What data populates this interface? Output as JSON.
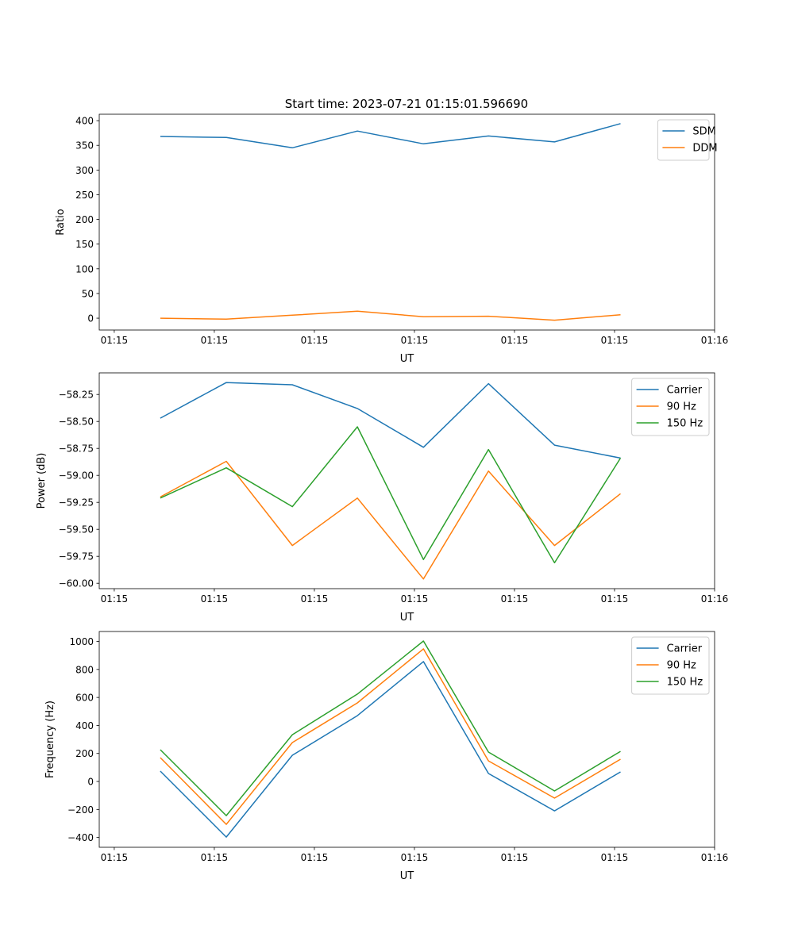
{
  "title": "Start time: 2023-07-21 01:15:01.596690",
  "colors": {
    "c0": "#1f77b4",
    "c1": "#ff7f0e",
    "c2": "#2ca02c"
  },
  "chart_data": [
    {
      "type": "line",
      "xlabel": "UT",
      "ylabel": "Ratio",
      "x": [
        0.46,
        1.12,
        1.78,
        2.43,
        3.09,
        3.74,
        4.4,
        5.06
      ],
      "xlim": [
        -0.15,
        6.0
      ],
      "xticks": [
        0,
        1,
        2,
        3,
        4,
        5,
        6
      ],
      "xticklabels": [
        "01:15",
        "01:15",
        "01:15",
        "01:15",
        "01:15",
        "01:15",
        "01:16"
      ],
      "ylim": [
        -24,
        413
      ],
      "yticks": [
        0,
        50,
        100,
        150,
        200,
        250,
        300,
        350,
        400
      ],
      "yticklabels": [
        "0",
        "50",
        "100",
        "150",
        "200",
        "250",
        "300",
        "350",
        "400"
      ],
      "legend_position": "top-right",
      "series": [
        {
          "name": "SDM",
          "color": "#1f77b4",
          "values": [
            368,
            366,
            345,
            379,
            353,
            369,
            357,
            394
          ]
        },
        {
          "name": "DDM",
          "color": "#ff7f0e",
          "values": [
            0,
            -2,
            6,
            14,
            3,
            4,
            -4,
            7
          ]
        }
      ]
    },
    {
      "type": "line",
      "xlabel": "UT",
      "ylabel": "Power (dB)",
      "x": [
        0.46,
        1.12,
        1.78,
        2.43,
        3.09,
        3.74,
        4.4,
        5.06
      ],
      "xlim": [
        -0.15,
        6.0
      ],
      "xticks": [
        0,
        1,
        2,
        3,
        4,
        5,
        6
      ],
      "xticklabels": [
        "01:15",
        "01:15",
        "01:15",
        "01:15",
        "01:15",
        "01:15",
        "01:16"
      ],
      "ylim": [
        -60.05,
        -58.05
      ],
      "yticks": [
        -60.0,
        -59.75,
        -59.5,
        -59.25,
        -59.0,
        -58.75,
        -58.5,
        -58.25
      ],
      "yticklabels": [
        "−60.00",
        "−59.75",
        "−59.50",
        "−59.25",
        "−59.00",
        "−58.75",
        "−58.50",
        "−58.25"
      ],
      "legend_position": "top-right",
      "series": [
        {
          "name": "Carrier",
          "color": "#1f77b4",
          "values": [
            -58.47,
            -58.14,
            -58.16,
            -58.38,
            -58.74,
            -58.15,
            -58.72,
            -58.84
          ]
        },
        {
          "name": "90 Hz",
          "color": "#ff7f0e",
          "values": [
            -59.2,
            -58.87,
            -59.65,
            -59.21,
            -59.96,
            -58.96,
            -59.65,
            -59.17
          ]
        },
        {
          "name": "150 Hz",
          "color": "#2ca02c",
          "values": [
            -59.21,
            -58.93,
            -59.29,
            -58.55,
            -59.78,
            -58.76,
            -59.81,
            -58.84
          ]
        }
      ]
    },
    {
      "type": "line",
      "xlabel": "UT",
      "ylabel": "Frequency (Hz)",
      "x": [
        0.46,
        1.12,
        1.78,
        2.43,
        3.09,
        3.74,
        4.4,
        5.06
      ],
      "xlim": [
        -0.15,
        6.0
      ],
      "xticks": [
        0,
        1,
        2,
        3,
        4,
        5,
        6
      ],
      "xticklabels": [
        "01:15",
        "01:15",
        "01:15",
        "01:15",
        "01:15",
        "01:15",
        "01:16"
      ],
      "ylim": [
        -470,
        1071
      ],
      "yticks": [
        -400,
        -200,
        0,
        200,
        400,
        600,
        800,
        1000
      ],
      "yticklabels": [
        "−400",
        "−200",
        "0",
        "200",
        "400",
        "600",
        "800",
        "1000"
      ],
      "legend_position": "top-right",
      "series": [
        {
          "name": "Carrier",
          "color": "#1f77b4",
          "values": [
            74,
            -397,
            187,
            470,
            856,
            57,
            -210,
            68
          ]
        },
        {
          "name": "90 Hz",
          "color": "#ff7f0e",
          "values": [
            170,
            -306,
            278,
            561,
            947,
            147,
            -119,
            159
          ]
        },
        {
          "name": "150 Hz",
          "color": "#2ca02c",
          "values": [
            227,
            -244,
            334,
            624,
            1003,
            210,
            -68,
            215
          ]
        }
      ]
    }
  ]
}
